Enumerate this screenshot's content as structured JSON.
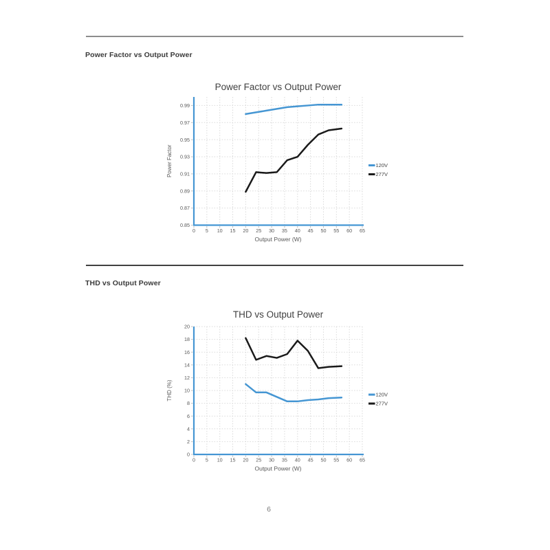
{
  "page": {
    "number": "6"
  },
  "sections": [
    {
      "heading": "Power Factor vs Output Power"
    },
    {
      "heading": "THD vs Output Power"
    }
  ],
  "colors": {
    "accent_blue": "#4596D3",
    "series_black": "#1A1A1A",
    "grid": "#D9D9D9",
    "tick_text": "#595959",
    "title_text": "#404040",
    "divider_top": "#8C8C8C",
    "divider_mid": "#404040",
    "page_number": "#7A7A7A"
  },
  "chart_data": [
    {
      "id": "pf",
      "type": "line",
      "title": "Power Factor vs Output Power",
      "xlabel": "Output Power (W)",
      "ylabel": "Power Factor",
      "xlim": [
        0,
        65
      ],
      "ylim": [
        0.85,
        1.0
      ],
      "grid": true,
      "legend_position": "right",
      "x_ticks": [
        "0",
        "5",
        "10",
        "15",
        "20",
        "25",
        "30",
        "35",
        "40",
        "45",
        "50",
        "55",
        "60",
        "65"
      ],
      "y_ticks": [
        "0.85",
        "0.87",
        "0.89",
        "0.91",
        "0.93",
        "0.95",
        "0.97",
        "0.99"
      ],
      "x": [
        20,
        24,
        28,
        32,
        36,
        40,
        44,
        48,
        52,
        57
      ],
      "series": [
        {
          "name": "120V",
          "color": "#4596D3",
          "values": [
            0.98,
            0.982,
            0.984,
            0.986,
            0.988,
            0.989,
            0.99,
            0.991,
            0.991,
            0.991
          ]
        },
        {
          "name": "277V",
          "color": "#1A1A1A",
          "values": [
            0.889,
            0.912,
            0.911,
            0.912,
            0.926,
            0.93,
            0.944,
            0.956,
            0.961,
            0.963
          ]
        }
      ]
    },
    {
      "id": "thd",
      "type": "line",
      "title": "THD vs Output Power",
      "xlabel": "Output Power (W)",
      "ylabel": "THD (%)",
      "xlim": [
        0,
        65
      ],
      "ylim": [
        0,
        20
      ],
      "grid": true,
      "legend_position": "right",
      "x_ticks": [
        "0",
        "5",
        "10",
        "15",
        "20",
        "25",
        "30",
        "35",
        "40",
        "45",
        "50",
        "55",
        "60",
        "65"
      ],
      "y_ticks": [
        "0",
        "2",
        "4",
        "6",
        "8",
        "10",
        "12",
        "14",
        "16",
        "18",
        "20"
      ],
      "x": [
        20,
        24,
        28,
        32,
        36,
        40,
        44,
        48,
        52,
        57
      ],
      "series": [
        {
          "name": "120V",
          "color": "#4596D3",
          "values": [
            11.0,
            9.7,
            9.7,
            9.0,
            8.3,
            8.3,
            8.5,
            8.6,
            8.8,
            8.9
          ]
        },
        {
          "name": "277V",
          "color": "#1A1A1A",
          "values": [
            18.2,
            14.8,
            15.4,
            15.1,
            15.7,
            17.8,
            16.2,
            13.5,
            13.7,
            13.8
          ]
        }
      ]
    }
  ]
}
